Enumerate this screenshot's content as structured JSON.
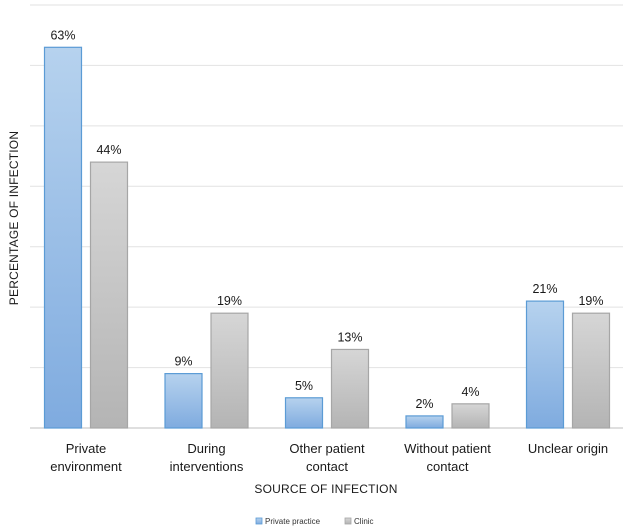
{
  "chart_data": {
    "type": "bar",
    "title": "",
    "xlabel": "SOURCE OF INFECTION",
    "ylabel": "PERCENTAGE OF INFECTION",
    "ylim": [
      0,
      70
    ],
    "grid": true,
    "legend_position": "bottom",
    "categories": [
      [
        "Private",
        "environment"
      ],
      [
        "During",
        "interventions"
      ],
      [
        "Other patient",
        "contact"
      ],
      [
        "Without patient",
        "contact"
      ],
      [
        "Unclear origin"
      ]
    ],
    "series": [
      {
        "name": "Private practice",
        "values": [
          63,
          9,
          5,
          2,
          21
        ],
        "labels": [
          "63%",
          "9%",
          "5%",
          "2%",
          "21%"
        ],
        "color": "#9dc3e6"
      },
      {
        "name": "Clinic",
        "values": [
          44,
          19,
          13,
          4,
          19
        ],
        "labels": [
          "44%",
          "19%",
          "13%",
          "4%",
          "19%"
        ],
        "color": "#c9c9c9"
      }
    ]
  }
}
